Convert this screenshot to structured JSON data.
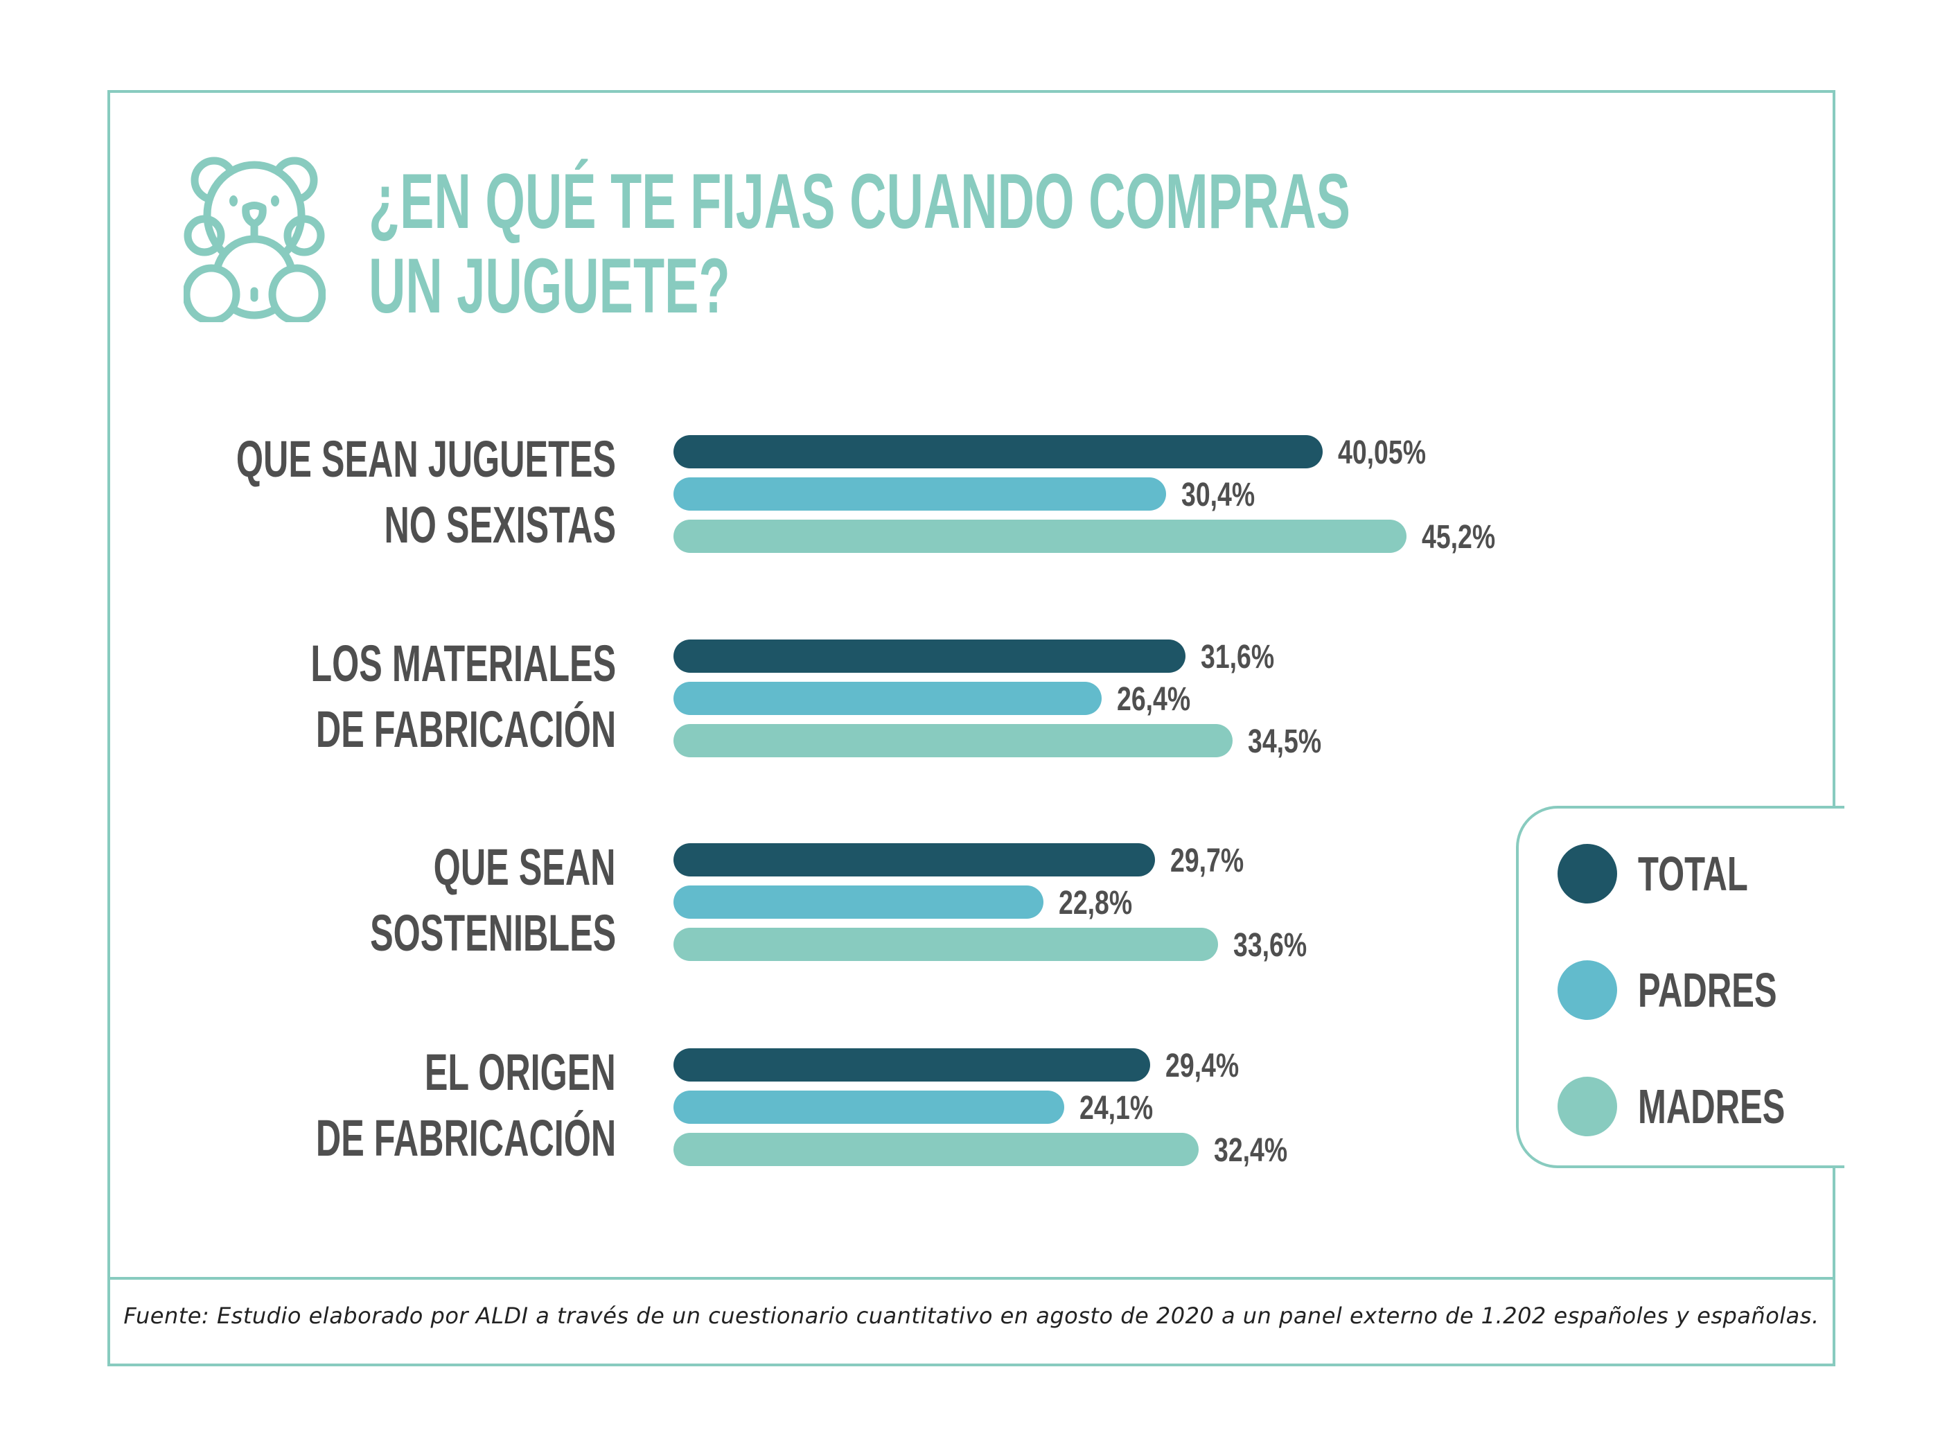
{
  "title": {
    "line1": "¿EN QUÉ TE FIJAS CUANDO COMPRAS",
    "line2": "UN JUGUETE?",
    "icon": "teddy-bear-icon"
  },
  "colors": {
    "total": "#1e5566",
    "padres": "#62bbcc",
    "madres": "#88cbbf",
    "accent": "#88cbbf",
    "text": "#4f4f4f"
  },
  "legend": [
    {
      "label": "TOTAL",
      "key": "total"
    },
    {
      "label": "PADRES",
      "key": "padres"
    },
    {
      "label": "MADRES",
      "key": "madres"
    }
  ],
  "chart_data": {
    "type": "bar",
    "orientation": "horizontal",
    "title": "¿EN QUÉ TE FIJAS CUANDO COMPRAS UN JUGUETE?",
    "categories": [
      {
        "line1": "QUE SEAN JUGUETES",
        "line2": "NO SEXISTAS"
      },
      {
        "line1": "LOS MATERIALES",
        "line2": "DE FABRICACIÓN"
      },
      {
        "line1": "QUE SEAN",
        "line2": "SOSTENIBLES"
      },
      {
        "line1": "EL ORIGEN",
        "line2": "DE FABRICACIÓN"
      }
    ],
    "series": [
      {
        "name": "TOTAL",
        "key": "total",
        "values": [
          40.05,
          31.6,
          29.7,
          29.4
        ],
        "labels": [
          "40,05%",
          "31,6%",
          "29,7%",
          "29,4%"
        ]
      },
      {
        "name": "PADRES",
        "key": "padres",
        "values": [
          30.4,
          26.4,
          22.8,
          24.1
        ],
        "labels": [
          "30,4%",
          "26,4%",
          "22,8%",
          "24,1%"
        ]
      },
      {
        "name": "MADRES",
        "key": "madres",
        "values": [
          45.2,
          34.5,
          33.6,
          32.4
        ],
        "labels": [
          "45,2%",
          "34,5%",
          "33,6%",
          "32,4%"
        ]
      }
    ],
    "unit": "%",
    "grid": false,
    "legend_position": "right"
  },
  "footnote": "Fuente: Estudio elaborado por ALDI a través de un cuestionario cuantitativo en agosto de 2020 a un panel externo de 1.202 españoles y españolas."
}
